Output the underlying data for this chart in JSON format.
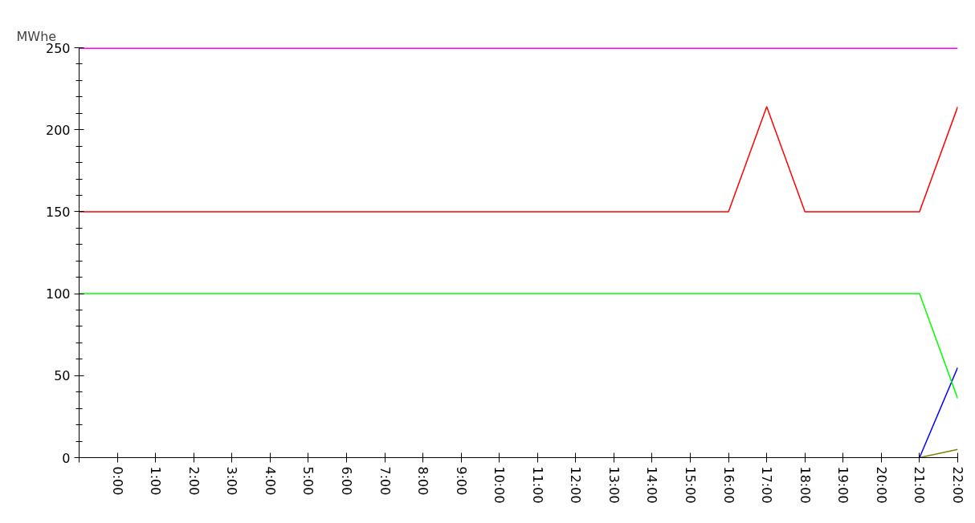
{
  "chart_data": {
    "type": "line",
    "ylabel": "MWhe",
    "series": [
      {
        "color": "#ff00ff",
        "x": [
          -1,
          22
        ],
        "values": [
          250,
          250
        ]
      },
      {
        "color": "#ff0000",
        "x": [
          -1,
          16,
          17,
          18,
          21,
          22
        ],
        "values": [
          150,
          150,
          214,
          150,
          150,
          214
        ]
      },
      {
        "color": "#00ff00",
        "x": [
          -1,
          21,
          22
        ],
        "values": [
          100,
          100,
          36
        ]
      },
      {
        "color": "#0000ff",
        "x": [
          21,
          22
        ],
        "values": [
          0,
          55
        ]
      },
      {
        "color": "#808000",
        "x": [
          21,
          22
        ],
        "values": [
          0,
          5
        ]
      }
    ],
    "xlim": [
      -1,
      22
    ],
    "xticks": [
      {
        "value": -1,
        "label": null
      },
      {
        "value": 0,
        "label": "0:00"
      },
      {
        "value": 1,
        "label": "1:00"
      },
      {
        "value": 2,
        "label": "2:00"
      },
      {
        "value": 3,
        "label": "3:00"
      },
      {
        "value": 4,
        "label": "4:00"
      },
      {
        "value": 5,
        "label": "5:00"
      },
      {
        "value": 6,
        "label": "6:00"
      },
      {
        "value": 7,
        "label": "7:00"
      },
      {
        "value": 8,
        "label": "8:00"
      },
      {
        "value": 9,
        "label": "9:00"
      },
      {
        "value": 10,
        "label": "10:00"
      },
      {
        "value": 11,
        "label": "11:00"
      },
      {
        "value": 12,
        "label": "12:00"
      },
      {
        "value": 13,
        "label": "13:00"
      },
      {
        "value": 14,
        "label": "14:00"
      },
      {
        "value": 15,
        "label": "15:00"
      },
      {
        "value": 16,
        "label": "16:00"
      },
      {
        "value": 17,
        "label": "17:00"
      },
      {
        "value": 18,
        "label": "18:00"
      },
      {
        "value": 19,
        "label": "19:00"
      },
      {
        "value": 20,
        "label": "20:00"
      },
      {
        "value": 21,
        "label": "21:00"
      },
      {
        "value": 22,
        "label": "22:00"
      }
    ],
    "ylim": [
      0,
      250
    ],
    "yticks": [
      0,
      50,
      100,
      150,
      200,
      250
    ],
    "grid": false,
    "marker": "none",
    "line_style": "solid"
  }
}
